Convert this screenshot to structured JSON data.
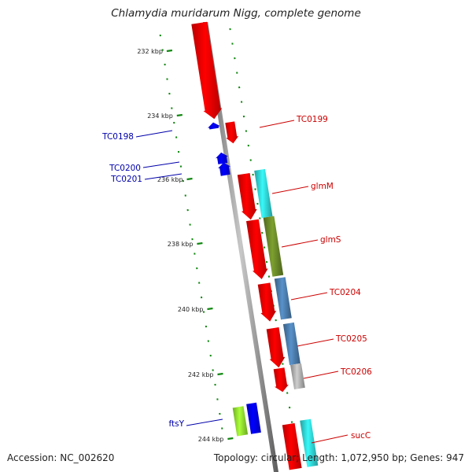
{
  "title": "Chlamydia muridarum Nigg, complete genome",
  "footer": {
    "accession": "Accession: NC_002620",
    "topology": "Topology: circular; Length: 1,072,950 bp; Genes: 947"
  },
  "scale_labels": [
    "232 kbp",
    "234 kbp",
    "236 kbp",
    "238 kbp",
    "240 kbp",
    "242 kbp",
    "244 kbp"
  ],
  "gene_labels": {
    "forward": [
      "TC0199",
      "glmM",
      "glmS",
      "TC0204",
      "TC0205",
      "TC0206",
      "sucC"
    ],
    "reverse": [
      "TC0198",
      "TC0200",
      "TC0201",
      "ftsY"
    ]
  },
  "colors": {
    "forward_label": "#cc0000",
    "reverse_label": "#0000aa",
    "forward_gene": "#ff0000",
    "reverse_gene": "#0000ff",
    "scale_tick": "#118811",
    "backbone": "#888888",
    "cog_cyan": "#33dddd",
    "cog_olive": "#6f8f2a",
    "cog_steelblue": "#4f82b4",
    "cog_gray": "#b8b8b8",
    "cog_lime": "#99ee33"
  }
}
